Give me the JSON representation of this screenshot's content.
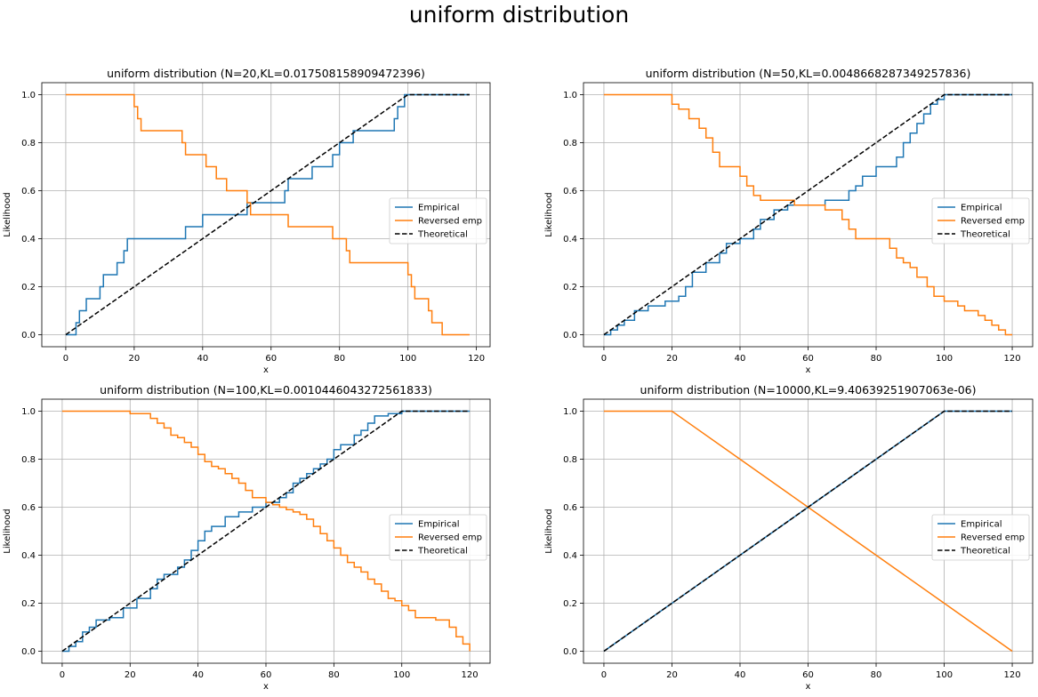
{
  "figure": {
    "title": "uniform distribution"
  },
  "colors": {
    "empirical": "#1f77b4",
    "reversed": "#ff7f0e",
    "theoretical": "#000000",
    "grid": "#b0b0b0"
  },
  "chart_data": [
    {
      "type": "line",
      "title": "uniform distribution (N=20,KL=0.017508158909472396)",
      "xlabel": "x",
      "ylabel": "Likelihood",
      "xlim": [
        -7,
        124
      ],
      "ylim": [
        -0.05,
        1.05
      ],
      "xticks": [
        0,
        20,
        40,
        60,
        80,
        100,
        120
      ],
      "yticks": [
        0.0,
        0.2,
        0.4,
        0.6,
        0.8,
        1.0
      ],
      "grid": true,
      "legend_position": "center-right",
      "series": [
        {
          "name": "Empirical",
          "style": "step",
          "color": "#1f77b4",
          "x": [
            0,
            3,
            4,
            6,
            10,
            11,
            15,
            17,
            18,
            35,
            40,
            53,
            64,
            65,
            72,
            78,
            80,
            84,
            96,
            97,
            99,
            100,
            118
          ],
          "y": [
            0.0,
            0.05,
            0.1,
            0.15,
            0.2,
            0.25,
            0.3,
            0.35,
            0.4,
            0.45,
            0.5,
            0.55,
            0.6,
            0.65,
            0.7,
            0.75,
            0.8,
            0.85,
            0.9,
            0.95,
            1.0,
            1.0,
            1.0
          ]
        },
        {
          "name": "Reversed emp",
          "style": "step",
          "color": "#ff7f0e",
          "x": [
            0,
            20,
            21,
            22,
            34,
            35,
            41,
            44,
            47,
            53,
            54,
            65,
            78,
            82,
            83,
            100,
            101,
            102,
            106,
            107,
            110,
            112,
            114,
            115,
            118
          ],
          "y": [
            1.0,
            0.95,
            0.9,
            0.85,
            0.8,
            0.75,
            0.7,
            0.65,
            0.6,
            0.55,
            0.5,
            0.45,
            0.4,
            0.35,
            0.3,
            0.25,
            0.2,
            0.15,
            0.1,
            0.05,
            0.0,
            0.0,
            0.0,
            0.0,
            0.0
          ]
        },
        {
          "name": "Theoretical",
          "style": "dashed",
          "color": "#000000",
          "x": [
            0,
            100,
            118
          ],
          "y": [
            0.0,
            1.0,
            1.0
          ]
        }
      ]
    },
    {
      "type": "line",
      "title": "uniform distribution (N=50,KL=0.0048668287349257836)",
      "xlabel": "x",
      "ylabel": "Likelihood",
      "xlim": [
        -6,
        126
      ],
      "ylim": [
        -0.05,
        1.05
      ],
      "xticks": [
        0,
        20,
        40,
        60,
        80,
        100,
        120
      ],
      "yticks": [
        0.0,
        0.2,
        0.4,
        0.6,
        0.8,
        1.0
      ],
      "grid": true,
      "legend_position": "center-right",
      "series": [
        {
          "name": "Empirical",
          "style": "step",
          "color": "#1f77b4",
          "x": [
            0,
            2,
            4,
            6,
            9,
            13,
            18,
            22,
            24,
            26,
            30,
            34,
            36,
            40,
            44,
            46,
            50,
            54,
            56,
            65,
            72,
            74,
            76,
            80,
            86,
            88,
            90,
            92,
            94,
            96,
            98,
            100,
            120
          ],
          "y": [
            0.0,
            0.02,
            0.04,
            0.06,
            0.1,
            0.12,
            0.14,
            0.16,
            0.2,
            0.26,
            0.3,
            0.34,
            0.38,
            0.4,
            0.44,
            0.48,
            0.52,
            0.54,
            0.54,
            0.56,
            0.6,
            0.62,
            0.66,
            0.7,
            0.74,
            0.8,
            0.84,
            0.88,
            0.92,
            0.96,
            0.98,
            1.0,
            1.0
          ]
        },
        {
          "name": "Reversed emp",
          "style": "step",
          "color": "#ff7f0e",
          "x": [
            0,
            20,
            22,
            25,
            28,
            30,
            32,
            34,
            40,
            42,
            44,
            46,
            56,
            65,
            70,
            72,
            74,
            84,
            86,
            88,
            90,
            92,
            95,
            97,
            100,
            104,
            106,
            110,
            112,
            114,
            116,
            118,
            120
          ],
          "y": [
            1.0,
            0.96,
            0.94,
            0.9,
            0.86,
            0.82,
            0.76,
            0.7,
            0.66,
            0.62,
            0.58,
            0.56,
            0.54,
            0.52,
            0.48,
            0.44,
            0.4,
            0.36,
            0.32,
            0.3,
            0.28,
            0.24,
            0.2,
            0.16,
            0.14,
            0.12,
            0.1,
            0.08,
            0.06,
            0.04,
            0.02,
            0.0,
            0.0
          ]
        },
        {
          "name": "Theoretical",
          "style": "dashed",
          "color": "#000000",
          "x": [
            0,
            100,
            120
          ],
          "y": [
            0.0,
            1.0,
            1.0
          ]
        }
      ]
    },
    {
      "type": "line",
      "title": "uniform distribution (N=100,KL=0.0010446043272561833)",
      "xlabel": "x",
      "ylabel": "Likelihood",
      "xlim": [
        -6,
        126
      ],
      "ylim": [
        -0.05,
        1.05
      ],
      "xticks": [
        0,
        20,
        40,
        60,
        80,
        100,
        120
      ],
      "yticks": [
        0.0,
        0.2,
        0.4,
        0.6,
        0.8,
        1.0
      ],
      "grid": true,
      "legend_position": "center-right",
      "series": [
        {
          "name": "Empirical",
          "style": "step",
          "color": "#1f77b4",
          "x": [
            0,
            2,
            4,
            6,
            8,
            10,
            14,
            18,
            22,
            26,
            28,
            30,
            34,
            36,
            38,
            40,
            42,
            44,
            48,
            52,
            56,
            60,
            64,
            66,
            68,
            70,
            72,
            74,
            76,
            78,
            80,
            82,
            86,
            88,
            90,
            92,
            96,
            100,
            120
          ],
          "y": [
            0.0,
            0.02,
            0.04,
            0.08,
            0.1,
            0.13,
            0.14,
            0.18,
            0.22,
            0.26,
            0.3,
            0.32,
            0.35,
            0.38,
            0.42,
            0.46,
            0.5,
            0.52,
            0.56,
            0.58,
            0.6,
            0.62,
            0.64,
            0.66,
            0.7,
            0.72,
            0.74,
            0.76,
            0.78,
            0.8,
            0.84,
            0.86,
            0.9,
            0.92,
            0.95,
            0.98,
            0.99,
            1.0,
            1.0
          ]
        },
        {
          "name": "Reversed emp",
          "style": "step",
          "color": "#ff7f0e",
          "x": [
            0,
            20,
            26,
            28,
            30,
            32,
            34,
            36,
            38,
            40,
            42,
            44,
            46,
            48,
            50,
            52,
            54,
            56,
            60,
            62,
            64,
            66,
            68,
            70,
            72,
            74,
            76,
            78,
            80,
            82,
            84,
            86,
            88,
            90,
            92,
            94,
            96,
            98,
            100,
            102,
            104,
            110,
            114,
            116,
            118,
            120
          ],
          "y": [
            1.0,
            0.99,
            0.97,
            0.95,
            0.93,
            0.9,
            0.89,
            0.87,
            0.85,
            0.82,
            0.79,
            0.77,
            0.76,
            0.74,
            0.72,
            0.7,
            0.67,
            0.64,
            0.62,
            0.61,
            0.6,
            0.59,
            0.58,
            0.57,
            0.55,
            0.52,
            0.49,
            0.46,
            0.43,
            0.4,
            0.37,
            0.35,
            0.33,
            0.3,
            0.28,
            0.25,
            0.22,
            0.21,
            0.19,
            0.17,
            0.14,
            0.13,
            0.1,
            0.06,
            0.03,
            0.0
          ]
        },
        {
          "name": "Theoretical",
          "style": "dashed",
          "color": "#000000",
          "x": [
            0,
            100,
            120
          ],
          "y": [
            0.0,
            1.0,
            1.0
          ]
        }
      ]
    },
    {
      "type": "line",
      "title": "uniform distribution (N=10000,KL=9.40639251907063e-06)",
      "xlabel": "x",
      "ylabel": "Likelihood",
      "xlim": [
        -6,
        126
      ],
      "ylim": [
        -0.05,
        1.05
      ],
      "xticks": [
        0,
        20,
        40,
        60,
        80,
        100,
        120
      ],
      "yticks": [
        0.0,
        0.2,
        0.4,
        0.6,
        0.8,
        1.0
      ],
      "grid": true,
      "legend_position": "center-right",
      "series": [
        {
          "name": "Empirical",
          "style": "line",
          "color": "#1f77b4",
          "x": [
            0,
            20,
            40,
            60,
            80,
            100,
            120
          ],
          "y": [
            0.0,
            0.2,
            0.4,
            0.6,
            0.8,
            1.0,
            1.0
          ]
        },
        {
          "name": "Reversed emp",
          "style": "line",
          "color": "#ff7f0e",
          "x": [
            0,
            20,
            40,
            60,
            80,
            100,
            120
          ],
          "y": [
            1.0,
            1.0,
            0.8,
            0.6,
            0.4,
            0.2,
            0.0
          ]
        },
        {
          "name": "Theoretical",
          "style": "dashed",
          "color": "#000000",
          "x": [
            0,
            100,
            120
          ],
          "y": [
            0.0,
            1.0,
            1.0
          ]
        }
      ]
    }
  ]
}
